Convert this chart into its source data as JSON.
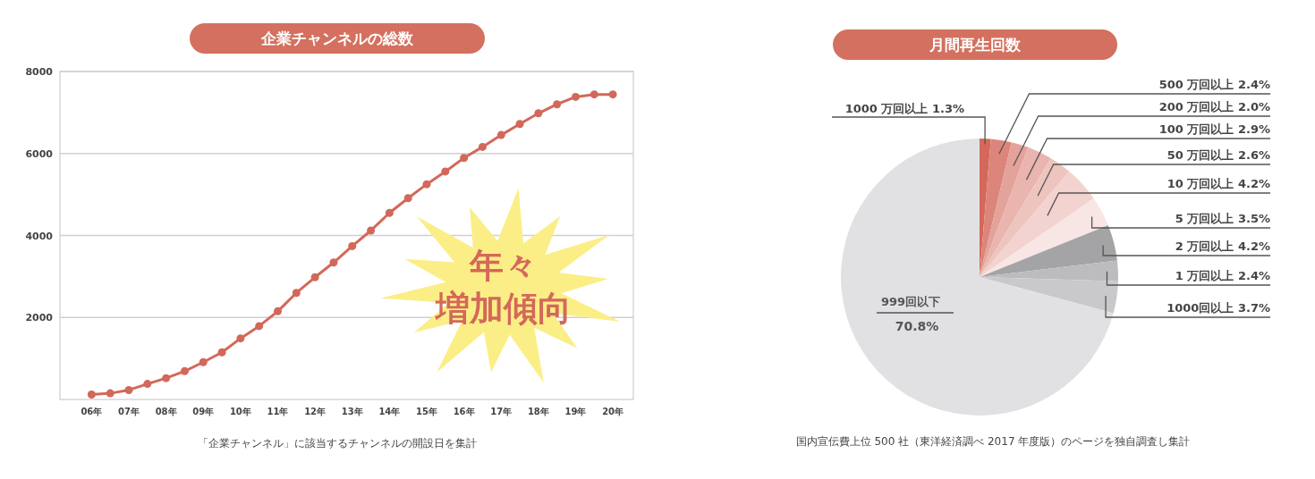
{
  "chart_data": [
    {
      "type": "line",
      "title": "企業チャンネルの総数",
      "categories": [
        "06年",
        null,
        "07年",
        null,
        "08年",
        null,
        "09年",
        null,
        "10年",
        null,
        "11年",
        null,
        "12年",
        null,
        "13年",
        null,
        "14年",
        null,
        "15年",
        null,
        "16年",
        null,
        "17年",
        null,
        "18年",
        null,
        "19年",
        null,
        "20年"
      ],
      "series": [
        {
          "color": "#d2685a",
          "values": [
            120,
            150,
            230,
            380,
            520,
            690,
            910,
            1150,
            1490,
            1790,
            2150,
            2600,
            2980,
            3340,
            3740,
            4120,
            4550,
            4910,
            5250,
            5560,
            5890,
            6160,
            6450,
            6720,
            6980,
            7200,
            7380,
            7440,
            7440
          ]
        }
      ],
      "ylim": [
        0,
        8000
      ],
      "yticks": [
        2000,
        4000,
        6000,
        8000
      ],
      "grid": "y",
      "marker": "circle",
      "line_style": "solid",
      "annotations": [
        "年々",
        "増加傾向",
        "「企業チャンネル」に該当するチャンネルの開設日を集計"
      ]
    },
    {
      "type": "pie",
      "title": "月間再生回数",
      "categories": [
        "1000 万回以上",
        "500 万回以上",
        "200 万回以上",
        "100 万回以上",
        "50 万回以上",
        "10 万回以上",
        "5 万回以上",
        "2 万回以上",
        "1 万回以上",
        "1000回以上",
        "999回以下"
      ],
      "values": [
        1.3,
        2.4,
        2.0,
        2.9,
        2.6,
        4.2,
        3.5,
        4.2,
        2.4,
        3.7,
        70.8
      ],
      "value_labels": [
        "1.3%",
        "2.4%",
        "2.0%",
        "2.9%",
        "2.6%",
        "4.2%",
        "3.5%",
        "4.2%",
        "2.4%",
        "3.7%",
        "70.8%"
      ],
      "colors": [
        "#d4685a",
        "#dc857a",
        "#e3a29a",
        "#e9b5ae",
        "#eec4bf",
        "#f2d3cf",
        "#f7e6e4",
        "#a4a4a6",
        "#bcbcbe",
        "#c9c9cb",
        "#e1e1e3"
      ],
      "annotations": [
        "国内宣伝費上位 500 社（東洋経済調べ 2017 年度版）のページを独自調査し集計"
      ]
    }
  ]
}
